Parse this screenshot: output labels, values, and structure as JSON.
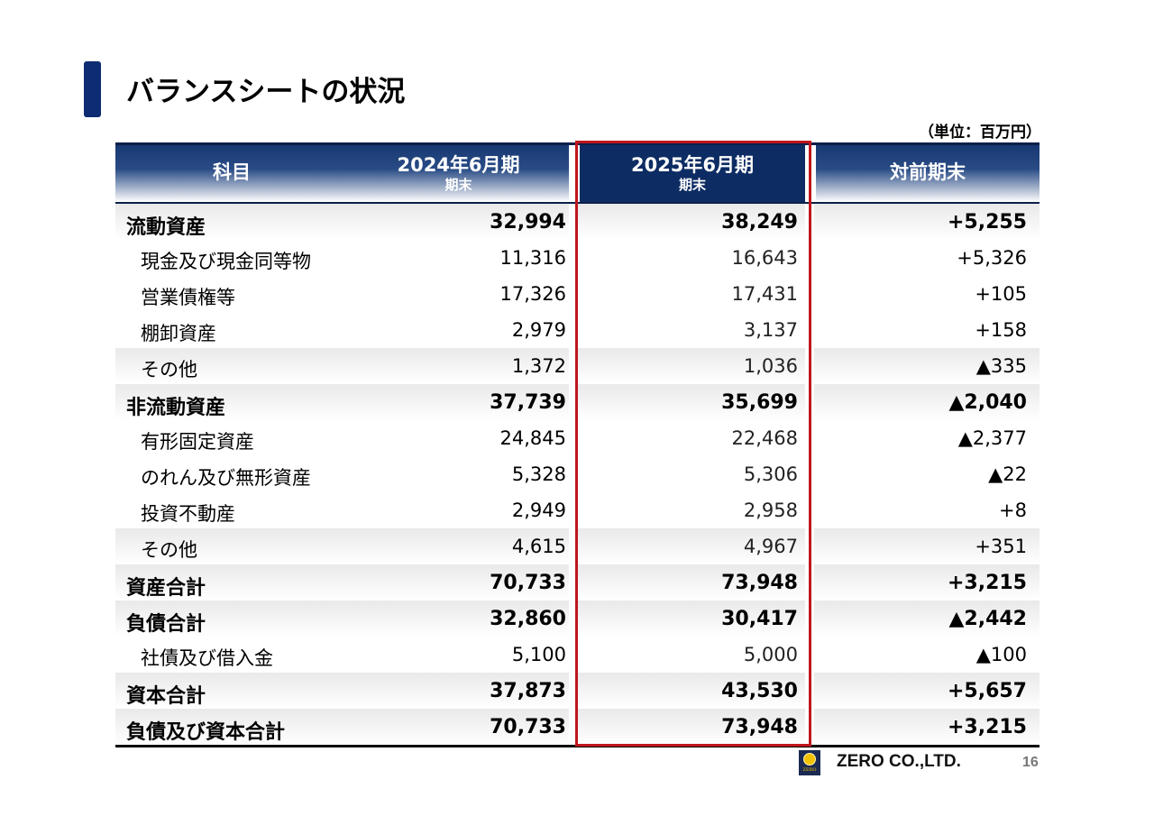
{
  "page": {
    "title": "バランスシートの状況",
    "unit": "（単位：百万円）",
    "page_number": "16"
  },
  "table": {
    "headers": {
      "item": "科目",
      "fy2024": "2024年6月期",
      "fy2024_sub": "期末",
      "fy2025": "2025年6月期",
      "fy2025_sub": "期末",
      "diff": "対前期末"
    },
    "rows": [
      {
        "name": "流動資産",
        "fy2024": "32,994",
        "fy2025": "38,249",
        "diff": "+5,255"
      },
      {
        "name": "現金及び現金同等物",
        "fy2024": "11,316",
        "fy2025": "16,643",
        "diff": "+5,326"
      },
      {
        "name": "営業債権等",
        "fy2024": "17,326",
        "fy2025": "17,431",
        "diff": "+105"
      },
      {
        "name": "棚卸資産",
        "fy2024": "2,979",
        "fy2025": "3,137",
        "diff": "+158"
      },
      {
        "name": "その他",
        "fy2024": "1,372",
        "fy2025": "1,036",
        "diff": "▲335"
      },
      {
        "name": "非流動資産",
        "fy2024": "37,739",
        "fy2025": "35,699",
        "diff": "▲2,040"
      },
      {
        "name": "有形固定資産",
        "fy2024": "24,845",
        "fy2025": "22,468",
        "diff": "▲2,377"
      },
      {
        "name": "のれん及び無形資産",
        "fy2024": "5,328",
        "fy2025": "5,306",
        "diff": "▲22"
      },
      {
        "name": "投資不動産",
        "fy2024": "2,949",
        "fy2025": "2,958",
        "diff": "+8"
      },
      {
        "name": "その他",
        "fy2024": "4,615",
        "fy2025": "4,967",
        "diff": "+351"
      },
      {
        "name": "資産合計",
        "fy2024": "70,733",
        "fy2025": "73,948",
        "diff": "+3,215"
      },
      {
        "name": "負債合計",
        "fy2024": "32,860",
        "fy2025": "30,417",
        "diff": "▲2,442"
      },
      {
        "name": "社債及び借入金",
        "fy2024": "5,100",
        "fy2025": "5,000",
        "diff": "▲100"
      },
      {
        "name": "資本合計",
        "fy2024": "37,873",
        "fy2025": "43,530",
        "diff": "+5,657"
      },
      {
        "name": "負債及び資本合計",
        "fy2024": "70,733",
        "fy2025": "73,948",
        "diff": "+3,215"
      }
    ]
  },
  "footer": {
    "logo_text": "ZERO",
    "company": "ZERO CO.,LTD."
  },
  "colors": {
    "title_accent": "#0d2c73",
    "highlight_border": "#c0161d"
  }
}
